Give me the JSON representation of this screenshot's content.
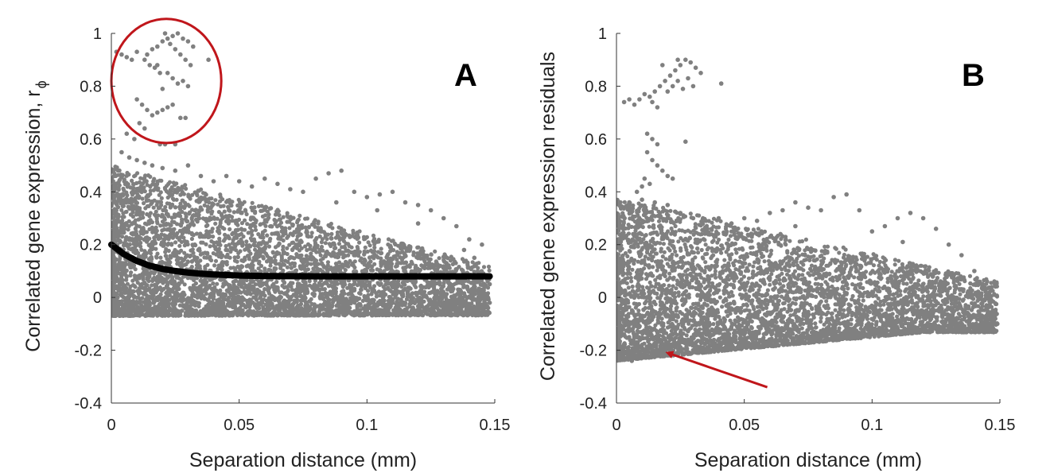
{
  "chart_data": [
    {
      "type": "scatter",
      "panel_label": "A",
      "xlabel": "Separation distance (mm)",
      "ylabel": "Correlated gene expression, r",
      "ylabel_sub": "ϕ",
      "xlim": [
        0,
        0.15
      ],
      "ylim": [
        -0.4,
        1
      ],
      "xticks": [
        "0",
        "0.05",
        "0.1",
        "0.15"
      ],
      "yticks": [
        "-0.4",
        "-0.2",
        "0",
        "0.2",
        "0.4",
        "0.6",
        "0.8",
        "1"
      ],
      "grid": false,
      "point_color": "#808080",
      "fit_color": "#000000",
      "annotation": {
        "type": "ellipse",
        "color": "#c0161b",
        "center": [
          0.0215,
          0.82
        ],
        "radii": [
          0.0215,
          0.235
        ]
      },
      "fit_curve": {
        "x": [
          0,
          0.005,
          0.01,
          0.015,
          0.02,
          0.025,
          0.03,
          0.035,
          0.04,
          0.05,
          0.06,
          0.08,
          0.1,
          0.12,
          0.148
        ],
        "y": [
          0.2,
          0.163,
          0.138,
          0.12,
          0.108,
          0.1,
          0.094,
          0.09,
          0.087,
          0.083,
          0.081,
          0.08,
          0.08,
          0.08,
          0.08
        ]
      },
      "cloud": {
        "xmax": 0.148,
        "floor": -0.07,
        "floor_slope": 0.35,
        "top_start": 0.5,
        "top_end": 0.12
      },
      "points": [
        [
          0.002,
          0.93
        ],
        [
          0.004,
          0.92
        ],
        [
          0.006,
          0.91
        ],
        [
          0.008,
          0.9
        ],
        [
          0.01,
          0.93
        ],
        [
          0.013,
          0.9
        ],
        [
          0.015,
          0.88
        ],
        [
          0.017,
          0.87
        ],
        [
          0.019,
          0.85
        ],
        [
          0.014,
          0.92
        ],
        [
          0.016,
          0.94
        ],
        [
          0.018,
          0.95
        ],
        [
          0.02,
          0.97
        ],
        [
          0.022,
          0.98
        ],
        [
          0.024,
          0.99
        ],
        [
          0.026,
          1.0
        ],
        [
          0.028,
          0.98
        ],
        [
          0.03,
          0.97
        ],
        [
          0.032,
          0.95
        ],
        [
          0.021,
          1.0
        ],
        [
          0.023,
          0.96
        ],
        [
          0.025,
          0.94
        ],
        [
          0.027,
          0.92
        ],
        [
          0.029,
          0.9
        ],
        [
          0.031,
          0.88
        ],
        [
          0.022,
          0.85
        ],
        [
          0.024,
          0.83
        ],
        [
          0.026,
          0.81
        ],
        [
          0.02,
          0.79
        ],
        [
          0.028,
          0.82
        ],
        [
          0.03,
          0.8
        ],
        [
          0.018,
          0.88
        ],
        [
          0.038,
          0.9
        ],
        [
          0.01,
          0.75
        ],
        [
          0.012,
          0.73
        ],
        [
          0.014,
          0.71
        ],
        [
          0.016,
          0.69
        ],
        [
          0.011,
          0.66
        ],
        [
          0.013,
          0.64
        ],
        [
          0.018,
          0.7
        ],
        [
          0.02,
          0.71
        ],
        [
          0.022,
          0.72
        ],
        [
          0.024,
          0.73
        ],
        [
          0.027,
          0.68
        ],
        [
          0.029,
          0.68
        ],
        [
          0.006,
          0.62
        ],
        [
          0.009,
          0.6
        ],
        [
          0.019,
          0.58
        ],
        [
          0.021,
          0.58
        ],
        [
          0.025,
          0.58
        ],
        [
          0.004,
          0.55
        ],
        [
          0.007,
          0.53
        ],
        [
          0.01,
          0.52
        ],
        [
          0.013,
          0.51
        ],
        [
          0.016,
          0.5
        ],
        [
          0.02,
          0.49
        ],
        [
          0.025,
          0.48
        ],
        [
          0.03,
          0.5
        ],
        [
          0.035,
          0.46
        ],
        [
          0.04,
          0.44
        ],
        [
          0.045,
          0.46
        ],
        [
          0.05,
          0.44
        ],
        [
          0.055,
          0.42
        ],
        [
          0.06,
          0.45
        ],
        [
          0.065,
          0.43
        ],
        [
          0.07,
          0.41
        ],
        [
          0.075,
          0.4
        ],
        [
          0.08,
          0.45
        ],
        [
          0.085,
          0.47
        ],
        [
          0.09,
          0.48
        ],
        [
          0.095,
          0.4
        ],
        [
          0.1,
          0.38
        ],
        [
          0.105,
          0.39
        ],
        [
          0.11,
          0.4
        ],
        [
          0.115,
          0.36
        ],
        [
          0.12,
          0.35
        ],
        [
          0.125,
          0.33
        ],
        [
          0.13,
          0.3
        ],
        [
          0.135,
          0.27
        ],
        [
          0.14,
          0.22
        ],
        [
          0.145,
          0.2
        ],
        [
          0.148,
          0.05
        ],
        [
          0.148,
          -0.02
        ],
        [
          0.142,
          0.15
        ],
        [
          0.138,
          0.18
        ],
        [
          0.046,
          0.33
        ],
        [
          0.06,
          0.34
        ],
        [
          0.088,
          0.36
        ],
        [
          0.12,
          0.28
        ],
        [
          0.104,
          0.33
        ]
      ]
    },
    {
      "type": "scatter",
      "panel_label": "B",
      "xlabel": "Separation distance (mm)",
      "ylabel": "Correlated gene expression residuals",
      "xlim": [
        0,
        0.15
      ],
      "ylim": [
        -0.4,
        1
      ],
      "xticks": [
        "0",
        "0.05",
        "0.1",
        "0.15"
      ],
      "yticks": [
        "-0.4",
        "-0.2",
        "0",
        "0.2",
        "0.4",
        "0.6",
        "0.8",
        "1"
      ],
      "grid": false,
      "point_color": "#808080",
      "annotation": {
        "type": "arrow",
        "color": "#c0161b",
        "from": [
          0.059,
          -0.34
        ],
        "to": [
          0.02,
          -0.21
        ]
      },
      "cloud": {
        "xmax": 0.149,
        "floor": -0.24,
        "floor_slope": 0.9,
        "top_start": 0.38,
        "top_end": 0.06
      },
      "points": [
        [
          0.003,
          0.74
        ],
        [
          0.005,
          0.75
        ],
        [
          0.007,
          0.73
        ],
        [
          0.009,
          0.75
        ],
        [
          0.011,
          0.77
        ],
        [
          0.013,
          0.76
        ],
        [
          0.015,
          0.78
        ],
        [
          0.017,
          0.8
        ],
        [
          0.019,
          0.82
        ],
        [
          0.021,
          0.84
        ],
        [
          0.023,
          0.86
        ],
        [
          0.025,
          0.88
        ],
        [
          0.027,
          0.9
        ],
        [
          0.029,
          0.89
        ],
        [
          0.031,
          0.87
        ],
        [
          0.033,
          0.85
        ],
        [
          0.02,
          0.78
        ],
        [
          0.022,
          0.8
        ],
        [
          0.024,
          0.82
        ],
        [
          0.026,
          0.79
        ],
        [
          0.028,
          0.83
        ],
        [
          0.03,
          0.8
        ],
        [
          0.041,
          0.81
        ],
        [
          0.018,
          0.88
        ],
        [
          0.024,
          0.9
        ],
        [
          0.016,
          0.72
        ],
        [
          0.014,
          0.74
        ],
        [
          0.012,
          0.62
        ],
        [
          0.014,
          0.6
        ],
        [
          0.016,
          0.58
        ],
        [
          0.012,
          0.55
        ],
        [
          0.014,
          0.52
        ],
        [
          0.016,
          0.5
        ],
        [
          0.018,
          0.48
        ],
        [
          0.02,
          0.46
        ],
        [
          0.011,
          0.45
        ],
        [
          0.013,
          0.43
        ],
        [
          0.027,
          0.59
        ],
        [
          0.022,
          0.45
        ],
        [
          0.008,
          0.4
        ],
        [
          0.01,
          0.42
        ],
        [
          0.005,
          0.36
        ],
        [
          0.01,
          0.37
        ],
        [
          0.015,
          0.36
        ],
        [
          0.02,
          0.35
        ],
        [
          0.025,
          0.32
        ],
        [
          0.03,
          0.3
        ],
        [
          0.035,
          0.29
        ],
        [
          0.04,
          0.3
        ],
        [
          0.045,
          0.28
        ],
        [
          0.05,
          0.3
        ],
        [
          0.055,
          0.29
        ],
        [
          0.06,
          0.32
        ],
        [
          0.065,
          0.33
        ],
        [
          0.07,
          0.36
        ],
        [
          0.075,
          0.34
        ],
        [
          0.08,
          0.33
        ],
        [
          0.085,
          0.38
        ],
        [
          0.09,
          0.39
        ],
        [
          0.095,
          0.33
        ],
        [
          0.1,
          0.25
        ],
        [
          0.105,
          0.27
        ],
        [
          0.11,
          0.3
        ],
        [
          0.115,
          0.32
        ],
        [
          0.12,
          0.3
        ],
        [
          0.125,
          0.26
        ],
        [
          0.13,
          0.2
        ],
        [
          0.135,
          0.16
        ],
        [
          0.14,
          0.1
        ],
        [
          0.143,
          0.05
        ],
        [
          0.146,
          0.02
        ],
        [
          0.149,
          -0.1
        ],
        [
          0.147,
          -0.06
        ],
        [
          0.004,
          -0.23
        ],
        [
          0.006,
          -0.24
        ],
        [
          0.008,
          -0.22
        ],
        [
          0.012,
          -0.2
        ],
        [
          0.055,
          0.24
        ],
        [
          0.07,
          0.27
        ],
        [
          0.112,
          0.21
        ]
      ]
    }
  ]
}
